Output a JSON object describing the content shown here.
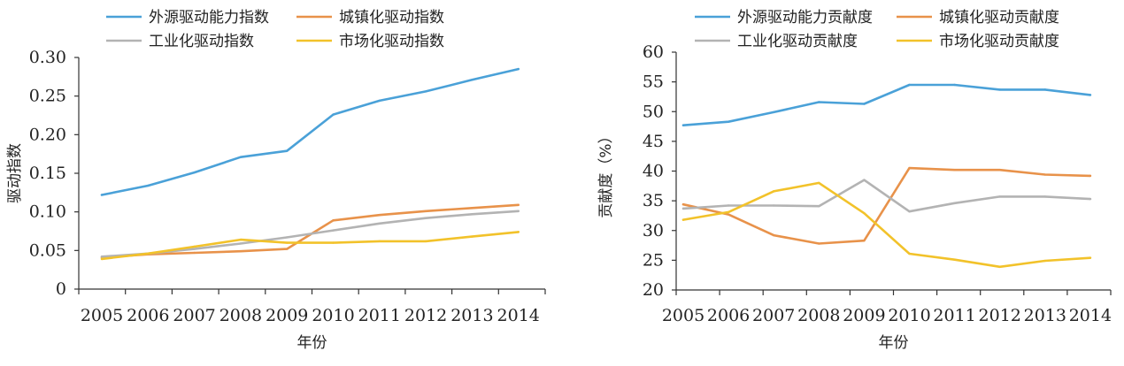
{
  "colors": {
    "blue": "#4aa1d8",
    "orange": "#e8924a",
    "gray": "#b3b3b3",
    "yellow": "#f2c22a"
  },
  "chart_data": [
    {
      "type": "line",
      "title": "",
      "xlabel": "年份",
      "ylabel": "驱动指数",
      "x": [
        "2005",
        "2006",
        "2007",
        "2008",
        "2009",
        "2010",
        "2011",
        "2012",
        "2013",
        "2014"
      ],
      "ylim": [
        0,
        0.3
      ],
      "yticks": [
        "0",
        "0.05",
        "0.10",
        "0.15",
        "0.20",
        "0.25",
        "0.30"
      ],
      "grid": false,
      "legend_position": "top",
      "series": [
        {
          "name": "外源驱动能力指数",
          "color": "blue",
          "values": [
            0.122,
            0.134,
            0.151,
            0.171,
            0.179,
            0.226,
            0.244,
            0.256,
            0.271,
            0.285
          ]
        },
        {
          "name": "城镇化驱动指数",
          "color": "orange",
          "values": [
            0.041,
            0.045,
            0.047,
            0.049,
            0.052,
            0.089,
            0.096,
            0.101,
            0.105,
            0.109
          ]
        },
        {
          "name": "工业化驱动指数",
          "color": "gray",
          "values": [
            0.042,
            0.046,
            0.052,
            0.059,
            0.067,
            0.076,
            0.085,
            0.092,
            0.097,
            0.101
          ]
        },
        {
          "name": "市场化驱动指数",
          "color": "yellow",
          "values": [
            0.039,
            0.046,
            0.055,
            0.064,
            0.06,
            0.06,
            0.062,
            0.062,
            0.068,
            0.074
          ]
        }
      ]
    },
    {
      "type": "line",
      "title": "",
      "xlabel": "年份",
      "ylabel": "贡献度（%）",
      "x": [
        "2005",
        "2006",
        "2007",
        "2008",
        "2009",
        "2010",
        "2011",
        "2012",
        "2013",
        "2014"
      ],
      "ylim": [
        20,
        60
      ],
      "yticks": [
        "20",
        "25",
        "30",
        "35",
        "40",
        "45",
        "50",
        "55",
        "60"
      ],
      "grid": false,
      "legend_position": "top",
      "series": [
        {
          "name": "外源驱动能力贡献度",
          "color": "blue",
          "values": [
            47.7,
            48.3,
            49.9,
            51.6,
            51.3,
            54.5,
            54.5,
            53.7,
            53.7,
            52.8
          ]
        },
        {
          "name": "城镇化驱动贡献度",
          "color": "orange",
          "values": [
            34.4,
            32.7,
            29.2,
            27.8,
            28.3,
            40.5,
            40.2,
            40.2,
            39.4,
            39.2
          ]
        },
        {
          "name": "工业化驱动贡献度",
          "color": "gray",
          "values": [
            33.7,
            34.2,
            34.2,
            34.1,
            38.5,
            33.2,
            34.6,
            35.7,
            35.7,
            35.3
          ]
        },
        {
          "name": "市场化驱动贡献度",
          "color": "yellow",
          "values": [
            31.8,
            33.1,
            36.6,
            38.0,
            32.9,
            26.1,
            25.1,
            23.9,
            24.9,
            25.4
          ]
        }
      ]
    }
  ]
}
